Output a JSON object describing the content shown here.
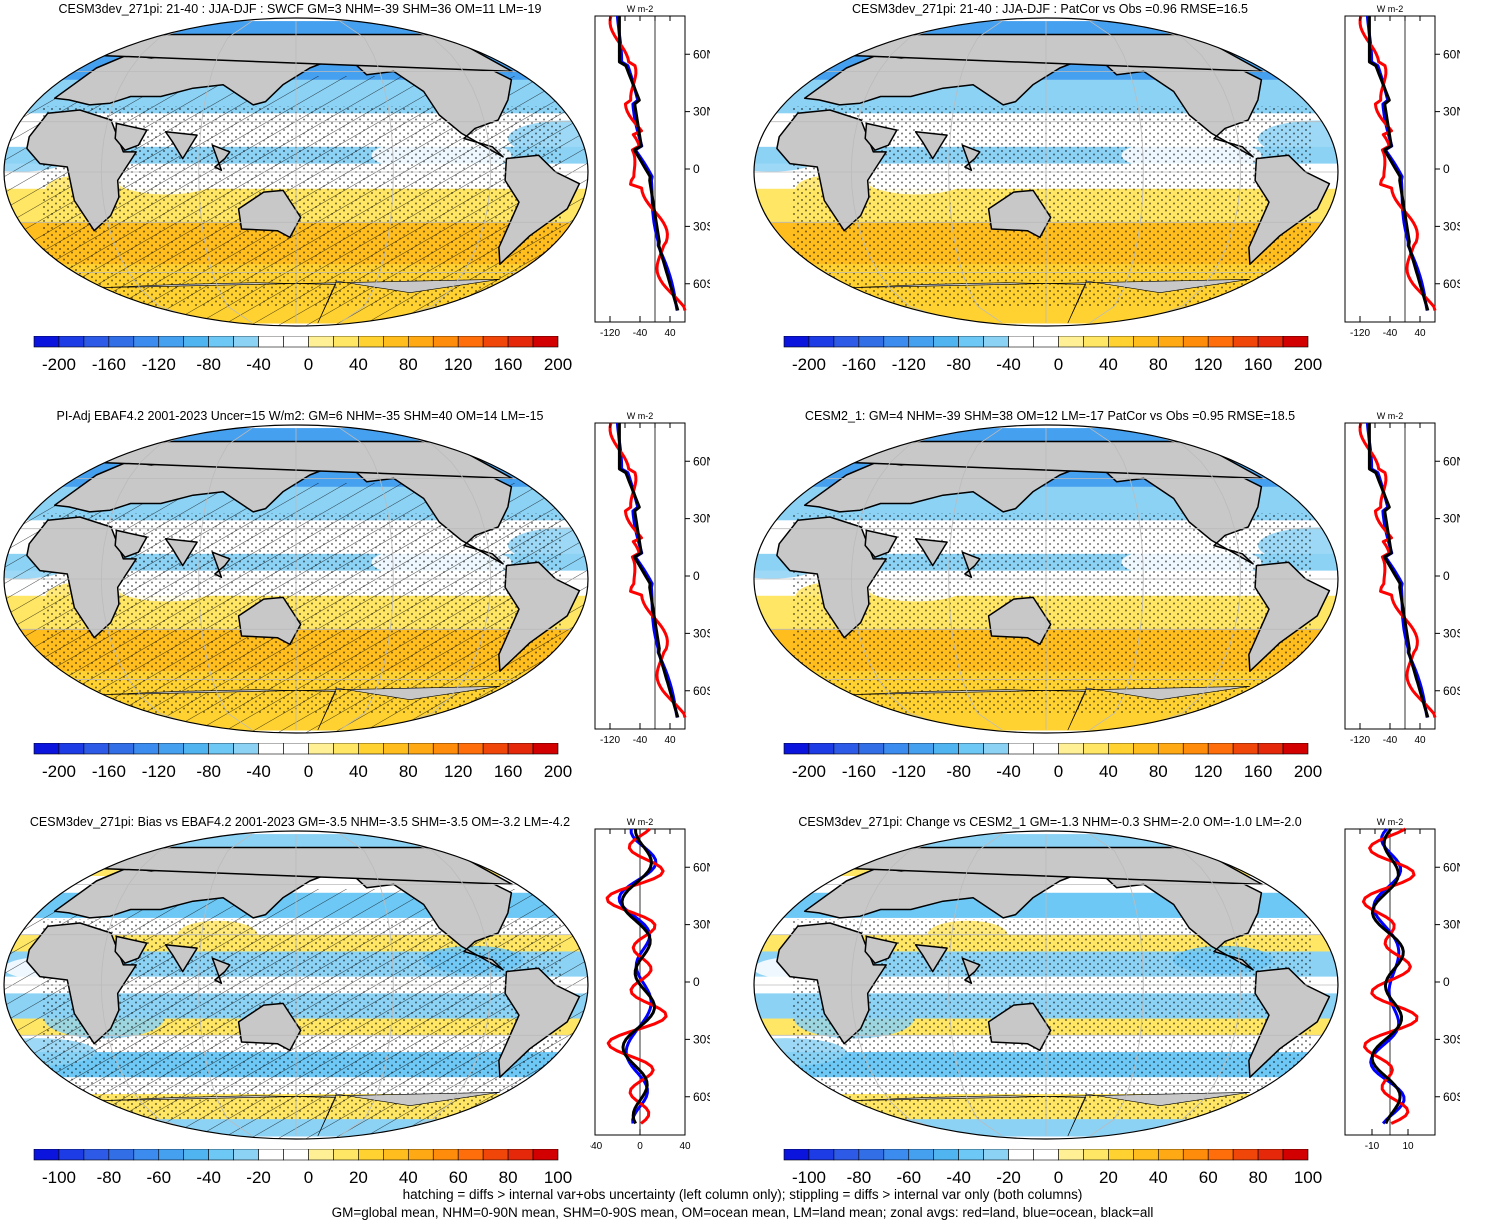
{
  "panels": [
    {
      "title": "CESM3dev_271pi: 21-40 : JJA-DJF : SWCF GM=3 NHM=-39 SHM=36 OM=11 LM=-19",
      "colorbar_labels": [
        "-200",
        "-160",
        "-120",
        "-80",
        "-40",
        "0",
        "40",
        "80",
        "120",
        "160",
        "200"
      ],
      "zonal_unit": "W m-2",
      "zonal_xticks": [
        "-120",
        "-40",
        "40"
      ],
      "zonal_yticks": [
        "60N",
        "30N",
        "0",
        "30S",
        "60S"
      ],
      "hatching": true,
      "style": "climo"
    },
    {
      "title": "CESM3dev_271pi: 21-40 : JJA-DJF : PatCor vs Obs =0.96 RMSE=16.5",
      "colorbar_labels": [
        "-200",
        "-160",
        "-120",
        "-80",
        "-40",
        "0",
        "40",
        "80",
        "120",
        "160",
        "200"
      ],
      "zonal_unit": "W m-2",
      "zonal_xticks": [
        "-120",
        "-40",
        "40"
      ],
      "zonal_yticks": [
        "60N",
        "30N",
        "0",
        "30S",
        "60S"
      ],
      "hatching": false,
      "style": "climo"
    },
    {
      "title": "PI-Adj EBAF4.2 2001-2023 Uncer=15 W/m2: GM=6 NHM=-35 SHM=40 OM=14 LM=-15",
      "colorbar_labels": [
        "-200",
        "-160",
        "-120",
        "-80",
        "-40",
        "0",
        "40",
        "80",
        "120",
        "160",
        "200"
      ],
      "zonal_unit": "W m-2",
      "zonal_xticks": [
        "-120",
        "-40",
        "40"
      ],
      "zonal_yticks": [
        "60N",
        "30N",
        "0",
        "30S",
        "60S"
      ],
      "hatching": true,
      "style": "climo"
    },
    {
      "title": "CESM2_1: GM=4 NHM=-39 SHM=38 OM=12 LM=-17 PatCor vs Obs =0.95 RMSE=18.5",
      "colorbar_labels": [
        "-200",
        "-160",
        "-120",
        "-80",
        "-40",
        "0",
        "40",
        "80",
        "120",
        "160",
        "200"
      ],
      "zonal_unit": "W m-2",
      "zonal_xticks": [
        "-120",
        "-40",
        "40"
      ],
      "zonal_yticks": [
        "60N",
        "30N",
        "0",
        "30S",
        "60S"
      ],
      "hatching": false,
      "style": "climo"
    },
    {
      "title": "CESM3dev_271pi: Bias vs EBAF4.2 2001-2023 GM=-3.5 NHM=-3.5 SHM=-3.5 OM=-3.2 LM=-4.2",
      "colorbar_labels": [
        "-100",
        "-80",
        "-60",
        "-40",
        "-20",
        "0",
        "20",
        "40",
        "60",
        "80",
        "100"
      ],
      "zonal_unit": "W m-2",
      "zonal_xticks": [
        "-40",
        "0",
        "40"
      ],
      "zonal_yticks": [
        "60N",
        "30N",
        "0",
        "30S",
        "60S"
      ],
      "hatching": true,
      "style": "diff"
    },
    {
      "title": "CESM3dev_271pi: Change vs CESM2_1 GM=-1.3 NHM=-0.3 SHM=-2.0 OM=-1.0 LM=-2.0",
      "colorbar_labels": [
        "-100",
        "-80",
        "-60",
        "-40",
        "-20",
        "0",
        "20",
        "40",
        "60",
        "80",
        "100"
      ],
      "zonal_unit": "W m-2",
      "zonal_xticks": [
        "-10",
        "10"
      ],
      "zonal_yticks": [
        "60N",
        "30N",
        "0",
        "30S",
        "60S"
      ],
      "hatching": false,
      "style": "diff"
    }
  ],
  "colorbar_colors": [
    "#0a14dc",
    "#1e3ce6",
    "#2d5ae6",
    "#326ee6",
    "#3c8cf0",
    "#46a0f0",
    "#50b4f0",
    "#6ec8f5",
    "#8cd2f5",
    "#ffffff",
    "#ffffff",
    "#fff096",
    "#ffe664",
    "#ffd232",
    "#ffbe1e",
    "#ffaa14",
    "#ff8c0a",
    "#ff6e0a",
    "#f0460a",
    "#e6280a",
    "#d20000"
  ],
  "line_colors": {
    "land": "#ff0000",
    "ocean": "#0000ff",
    "all": "#000000"
  },
  "footer": {
    "line1": "hatching = diffs > internal var+obs uncertainty (left column only); stippling = diffs > internal var only (both columns)",
    "line2": "GM=global mean, NHM=0-90N mean, SHM=0-90S mean, OM=ocean mean, LM=land mean; zonal avgs: red=land, blue=ocean, black=all"
  }
}
